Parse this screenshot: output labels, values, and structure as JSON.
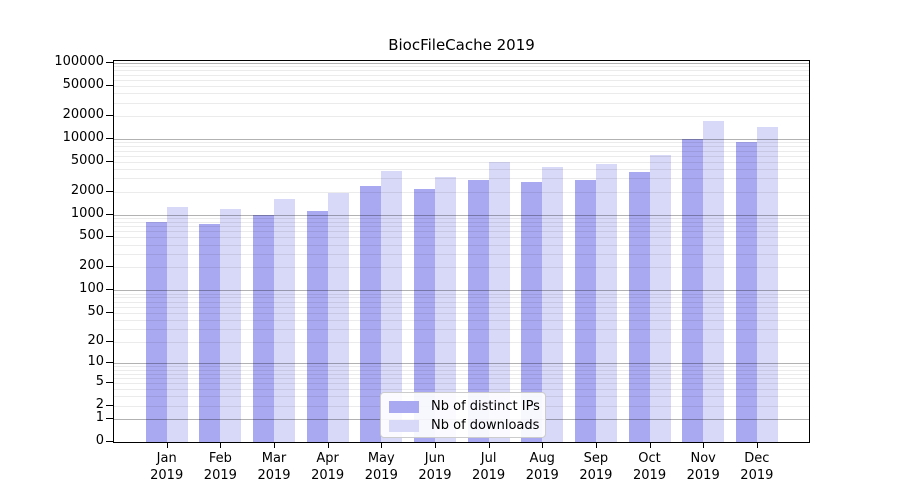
{
  "title": "BiocFileCache 2019",
  "chart_data": {
    "type": "bar",
    "title": "BiocFileCache 2019",
    "y_scale": "log1p",
    "ylim": [
      0,
      100000
    ],
    "grid": true,
    "legend_position": "lower center",
    "categories": [
      "Jan",
      "Feb",
      "Mar",
      "Apr",
      "May",
      "Jun",
      "Jul",
      "Aug",
      "Sep",
      "Oct",
      "Nov",
      "Dec"
    ],
    "x_year_label": "2019",
    "y_ticks": [
      0,
      1,
      2,
      5,
      10,
      20,
      50,
      100,
      200,
      500,
      1000,
      2000,
      5000,
      10000,
      20000,
      50000,
      100000
    ],
    "series": [
      {
        "name": "Nb of distinct IPs",
        "color": "#a9a9f1",
        "values": [
          790,
          760,
          980,
          1120,
          2400,
          2200,
          2850,
          2700,
          2900,
          3700,
          10000,
          9200
        ]
      },
      {
        "name": "Nb of downloads",
        "color": "#d8d8f8",
        "values": [
          1250,
          1200,
          1600,
          1900,
          3800,
          3100,
          4900,
          4300,
          4700,
          6200,
          17000,
          14500
        ]
      }
    ]
  },
  "colors": {
    "background": "#ffffff",
    "axis": "#000000",
    "minor_grid": "#e8e8e8",
    "major_grid": "#b0b0b0",
    "distinct_ips_bar": "#a9a9f1",
    "downloads_bar": "#d8d8f8"
  }
}
